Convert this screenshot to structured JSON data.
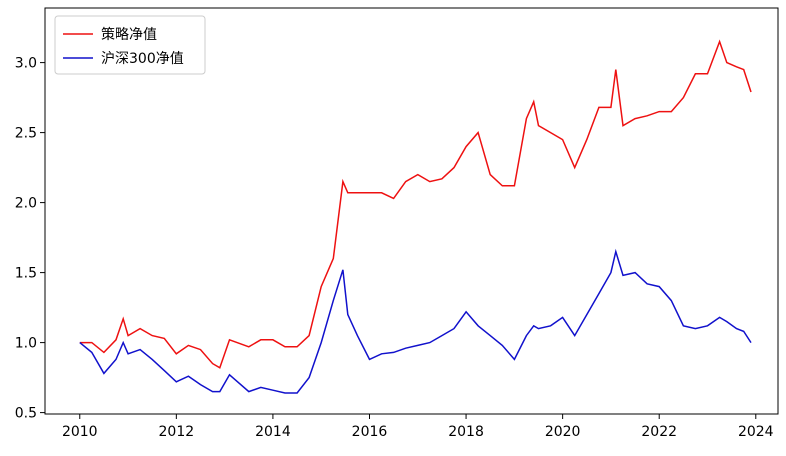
{
  "chart_data": {
    "type": "line",
    "x": [
      2010.0,
      2010.25,
      2010.5,
      2010.75,
      2010.9,
      2011.0,
      2011.25,
      2011.5,
      2011.75,
      2012.0,
      2012.25,
      2012.5,
      2012.75,
      2012.9,
      2013.1,
      2013.5,
      2013.75,
      2014.0,
      2014.25,
      2014.5,
      2014.75,
      2015.0,
      2015.25,
      2015.45,
      2015.55,
      2015.75,
      2016.0,
      2016.25,
      2016.5,
      2016.75,
      2017.0,
      2017.25,
      2017.5,
      2017.75,
      2018.0,
      2018.25,
      2018.5,
      2018.75,
      2019.0,
      2019.25,
      2019.4,
      2019.5,
      2019.75,
      2020.0,
      2020.25,
      2020.5,
      2020.75,
      2021.0,
      2021.1,
      2021.25,
      2021.5,
      2021.75,
      2022.0,
      2022.25,
      2022.5,
      2022.75,
      2023.0,
      2023.25,
      2023.4,
      2023.6,
      2023.75,
      2023.9
    ],
    "series": [
      {
        "name": "策略净值",
        "color": "#ee1111",
        "values": [
          1.0,
          1.0,
          0.93,
          1.02,
          1.17,
          1.05,
          1.1,
          1.05,
          1.03,
          0.92,
          0.98,
          0.95,
          0.85,
          0.82,
          1.02,
          0.97,
          1.02,
          1.02,
          0.97,
          0.97,
          1.05,
          1.4,
          1.6,
          2.15,
          2.07,
          2.07,
          2.07,
          2.07,
          2.03,
          2.15,
          2.2,
          2.15,
          2.17,
          2.25,
          2.4,
          2.5,
          2.2,
          2.12,
          2.12,
          2.6,
          2.72,
          2.55,
          2.5,
          2.45,
          2.25,
          2.45,
          2.68,
          2.68,
          2.95,
          2.55,
          2.6,
          2.62,
          2.65,
          2.65,
          2.75,
          2.92,
          2.92,
          3.15,
          3.0,
          2.97,
          2.95,
          2.79
        ]
      },
      {
        "name": "沪深300净值",
        "color": "#1111cc",
        "values": [
          1.0,
          0.93,
          0.78,
          0.88,
          1.0,
          0.92,
          0.95,
          0.88,
          0.8,
          0.72,
          0.76,
          0.7,
          0.65,
          0.65,
          0.77,
          0.65,
          0.68,
          0.66,
          0.64,
          0.64,
          0.75,
          1.0,
          1.3,
          1.52,
          1.2,
          1.05,
          0.88,
          0.92,
          0.93,
          0.96,
          0.98,
          1.0,
          1.05,
          1.1,
          1.22,
          1.12,
          1.05,
          0.98,
          0.88,
          1.05,
          1.12,
          1.1,
          1.12,
          1.18,
          1.05,
          1.2,
          1.35,
          1.5,
          1.65,
          1.48,
          1.5,
          1.42,
          1.4,
          1.3,
          1.12,
          1.1,
          1.12,
          1.18,
          1.15,
          1.1,
          1.08,
          1.0
        ]
      }
    ],
    "xlim": [
      2009.28,
      2024.46
    ],
    "xticks": [
      2010,
      2012,
      2014,
      2016,
      2018,
      2020,
      2022,
      2024
    ],
    "ylim": [
      0.49,
      3.39
    ],
    "yticks": [
      0.5,
      {
        "value": 1.0,
        "label": "1.0"
      },
      1.5,
      {
        "value": 2.0,
        "label": "2.0"
      },
      2.5,
      {
        "value": 3.0,
        "label": "3.0"
      }
    ],
    "legend": "upper left"
  }
}
